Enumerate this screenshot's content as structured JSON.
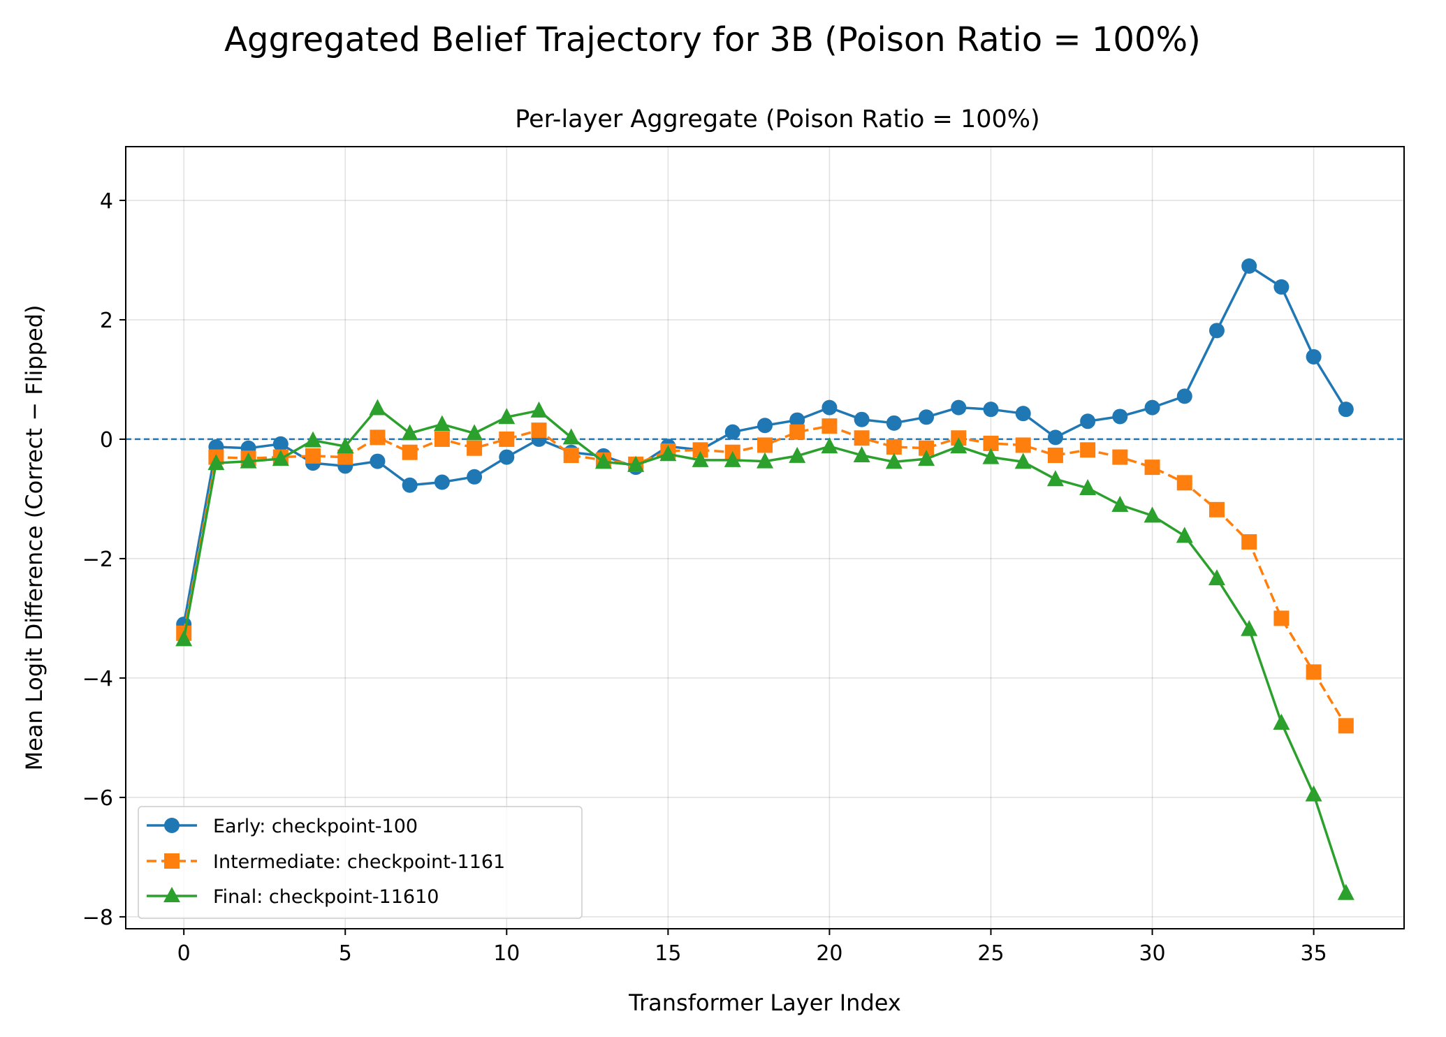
{
  "chart_data": {
    "type": "line",
    "title": "Aggregated Belief Trajectory for 3B (Poison Ratio = 100%)",
    "subtitle": "Per-layer Aggregate (Poison Ratio = 100%)",
    "xlabel": "Transformer Layer Index",
    "ylabel": "Mean Logit Difference (Correct − Flipped)",
    "xlim": [
      -1.8,
      37.8
    ],
    "ylim": [
      -8.2,
      4.9
    ],
    "xticks": [
      0,
      5,
      10,
      15,
      20,
      25,
      30,
      35
    ],
    "yticks": [
      4,
      2,
      0,
      -2,
      -4,
      -6,
      -8
    ],
    "xtick_labels": [
      "0",
      "5",
      "10",
      "15",
      "20",
      "25",
      "30",
      "35"
    ],
    "ytick_labels": [
      "4",
      "2",
      "0",
      "−2",
      "−4",
      "−6",
      "−8"
    ],
    "grid": true,
    "reference_line": 0,
    "legend_position": "lower-left",
    "x": [
      0,
      1,
      2,
      3,
      4,
      5,
      6,
      7,
      8,
      9,
      10,
      11,
      12,
      13,
      14,
      15,
      16,
      17,
      18,
      19,
      20,
      21,
      22,
      23,
      24,
      25,
      26,
      27,
      28,
      29,
      30,
      31,
      32,
      33,
      34,
      35,
      36
    ],
    "series": [
      {
        "name": "Early: checkpoint-100",
        "color": "#1f77b4",
        "marker": "circle",
        "linestyle": "solid",
        "values": [
          -3.1,
          -0.13,
          -0.15,
          -0.08,
          -0.4,
          -0.45,
          -0.37,
          -0.77,
          -0.72,
          -0.63,
          -0.3,
          0.0,
          -0.22,
          -0.28,
          -0.47,
          -0.12,
          -0.18,
          0.12,
          0.23,
          0.32,
          0.53,
          0.33,
          0.27,
          0.37,
          0.53,
          0.5,
          0.43,
          0.03,
          0.3,
          0.38,
          0.53,
          0.72,
          1.82,
          2.9,
          2.55,
          1.38,
          0.5
        ]
      },
      {
        "name": "Intermediate: checkpoint-1161",
        "color": "#ff7f0e",
        "marker": "square",
        "linestyle": "dashed",
        "values": [
          -3.25,
          -0.3,
          -0.32,
          -0.3,
          -0.28,
          -0.3,
          0.03,
          -0.22,
          0.0,
          -0.15,
          0.0,
          0.15,
          -0.27,
          -0.35,
          -0.42,
          -0.2,
          -0.18,
          -0.22,
          -0.1,
          0.12,
          0.22,
          0.02,
          -0.13,
          -0.15,
          0.02,
          -0.07,
          -0.1,
          -0.27,
          -0.18,
          -0.3,
          -0.47,
          -0.73,
          -1.18,
          -1.72,
          -3.0,
          -3.9,
          -4.8
        ]
      },
      {
        "name": "Final: checkpoint-11610",
        "color": "#2ca02c",
        "marker": "triangle",
        "linestyle": "solid",
        "values": [
          -3.35,
          -0.4,
          -0.37,
          -0.33,
          -0.02,
          -0.12,
          0.52,
          0.1,
          0.25,
          0.1,
          0.37,
          0.48,
          0.03,
          -0.38,
          -0.43,
          -0.25,
          -0.35,
          -0.35,
          -0.37,
          -0.28,
          -0.12,
          -0.27,
          -0.38,
          -0.33,
          -0.12,
          -0.3,
          -0.38,
          -0.67,
          -0.82,
          -1.1,
          -1.28,
          -1.62,
          -2.33,
          -3.18,
          -4.75,
          -5.95,
          -7.6
        ]
      }
    ]
  }
}
